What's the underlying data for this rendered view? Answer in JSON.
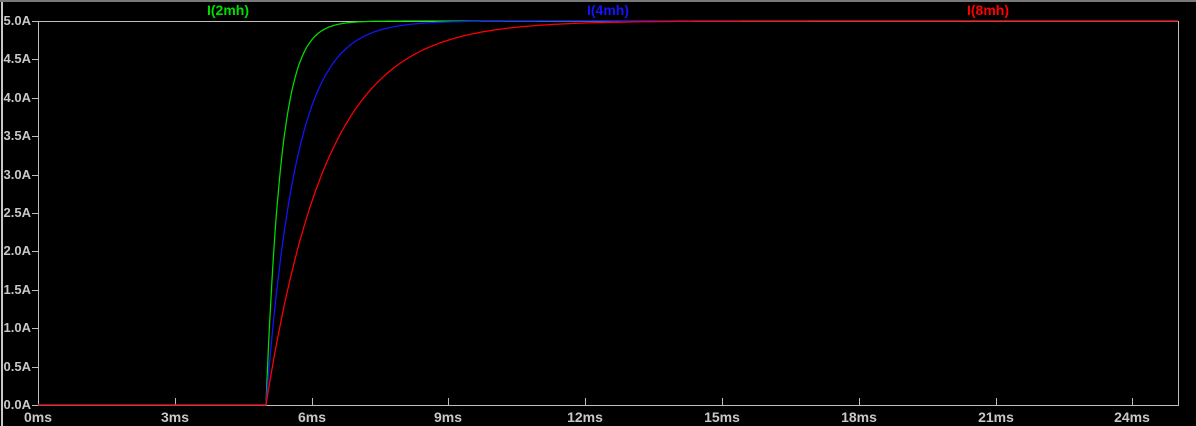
{
  "chart_data": {
    "type": "line",
    "title": "",
    "background_color": "#000000",
    "axis_color": "#bebebe",
    "tick_label_color": "#c8c8c8",
    "x_axis": {
      "unit": "ms",
      "lim": [
        0,
        25
      ],
      "ticks": [
        {
          "value": 0,
          "label": "0ms"
        },
        {
          "value": 3,
          "label": "3ms"
        },
        {
          "value": 6,
          "label": "6ms"
        },
        {
          "value": 9,
          "label": "9ms"
        },
        {
          "value": 12,
          "label": "12ms"
        },
        {
          "value": 15,
          "label": "15ms"
        },
        {
          "value": 18,
          "label": "18ms"
        },
        {
          "value": 21,
          "label": "21ms"
        },
        {
          "value": 24,
          "label": "24ms"
        }
      ]
    },
    "y_axis": {
      "unit": "A",
      "lim": [
        0,
        5
      ],
      "ticks": [
        {
          "value": 5.0,
          "label": "5.0A"
        },
        {
          "value": 4.5,
          "label": "4.5A"
        },
        {
          "value": 4.0,
          "label": "4.0A"
        },
        {
          "value": 3.5,
          "label": "3.5A"
        },
        {
          "value": 3.0,
          "label": "3.0A"
        },
        {
          "value": 2.5,
          "label": "2.5A"
        },
        {
          "value": 2.0,
          "label": "2.0A"
        },
        {
          "value": 1.5,
          "label": "1.5A"
        },
        {
          "value": 1.0,
          "label": "1.0A"
        },
        {
          "value": 0.5,
          "label": "0.5A"
        },
        {
          "value": 0.0,
          "label": "0.0A"
        }
      ]
    },
    "legend_position": "top-spread",
    "grid": false,
    "step_time_ms": 5,
    "final_current_A": 5,
    "series": [
      {
        "name": "I(2mh)",
        "color": "#00dd00",
        "tau_ms": 0.333,
        "points": [
          [
            0,
            0
          ],
          [
            5,
            0
          ],
          [
            5.167,
            1.97
          ],
          [
            5.333,
            3.16
          ],
          [
            5.5,
            3.88
          ],
          [
            5.667,
            4.32
          ],
          [
            5.833,
            4.59
          ],
          [
            6,
            4.75
          ],
          [
            6.167,
            4.85
          ],
          [
            6.333,
            4.91
          ],
          [
            6.5,
            4.94
          ],
          [
            6.667,
            4.97
          ],
          [
            6.833,
            4.98
          ],
          [
            7,
            4.99
          ],
          [
            25,
            5
          ]
        ]
      },
      {
        "name": "I(4mh)",
        "color": "#1414ff",
        "tau_ms": 0.667,
        "points": [
          [
            0,
            0
          ],
          [
            5,
            0
          ],
          [
            5.333,
            1.97
          ],
          [
            5.667,
            3.16
          ],
          [
            6,
            3.88
          ],
          [
            6.333,
            4.32
          ],
          [
            6.667,
            4.59
          ],
          [
            7,
            4.75
          ],
          [
            7.333,
            4.85
          ],
          [
            7.667,
            4.91
          ],
          [
            8,
            4.94
          ],
          [
            8.333,
            4.97
          ],
          [
            8.667,
            4.98
          ],
          [
            9,
            4.99
          ],
          [
            25,
            5
          ]
        ]
      },
      {
        "name": "I(8mh)",
        "color": "#ff0000",
        "tau_ms": 1.333,
        "points": [
          [
            0,
            0
          ],
          [
            5,
            0
          ],
          [
            5.667,
            1.97
          ],
          [
            6.333,
            3.16
          ],
          [
            7,
            3.88
          ],
          [
            7.667,
            4.32
          ],
          [
            8.333,
            4.59
          ],
          [
            9,
            4.75
          ],
          [
            9.667,
            4.85
          ],
          [
            10.333,
            4.91
          ],
          [
            11,
            4.94
          ],
          [
            11.667,
            4.97
          ],
          [
            12.333,
            4.98
          ],
          [
            13,
            4.99
          ],
          [
            25,
            5
          ]
        ]
      }
    ]
  }
}
